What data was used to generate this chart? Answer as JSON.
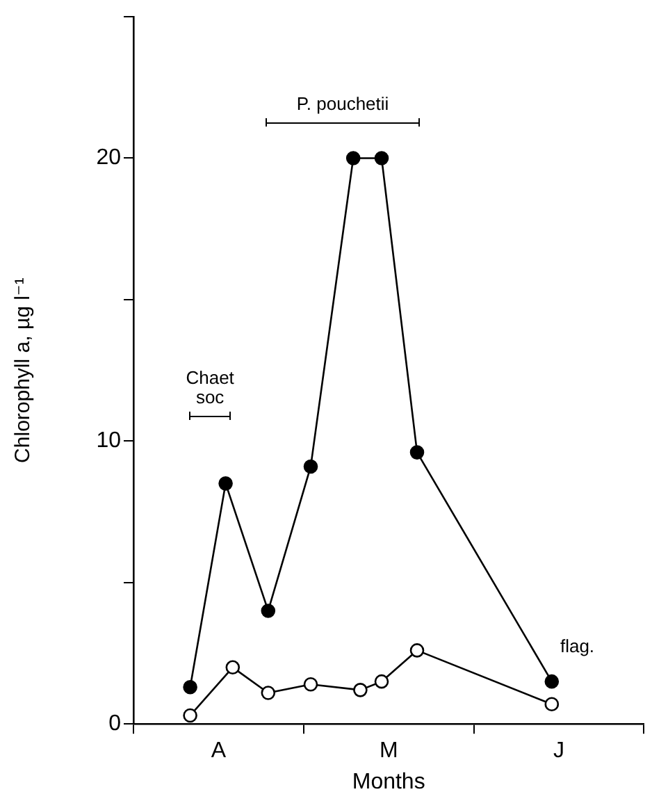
{
  "chart_data": {
    "type": "line",
    "xlabel": "Months",
    "ylabel": "Chlorophyll a, µg l⁻¹",
    "categories": [
      null,
      null,
      null,
      null,
      null,
      null,
      null,
      null,
      null,
      null,
      null,
      null,
      "A",
      null,
      null,
      null,
      null,
      null,
      null,
      null,
      null,
      null,
      null,
      null,
      null,
      null,
      null,
      null,
      null,
      null,
      null,
      null,
      null,
      null,
      null,
      null,
      "M",
      null,
      null,
      null,
      null,
      null,
      null,
      null,
      null,
      null,
      null,
      null,
      null,
      null,
      null,
      null,
      null,
      null,
      null,
      null,
      null,
      null,
      null,
      null,
      "J",
      null,
      null,
      null,
      null,
      null,
      null,
      null,
      null,
      null,
      null,
      null,
      null
    ],
    "ylim": [
      0,
      25
    ],
    "yticks": [
      0,
      {
        "value": 5,
        "label": null
      },
      10,
      {
        "value": 15,
        "label": null
      },
      20,
      {
        "value": 25,
        "label": null
      }
    ],
    "series": [
      {
        "color": "#000000",
        "values": [
          null,
          null,
          null,
          null,
          null,
          null,
          null,
          null,
          1.3,
          null,
          null,
          null,
          null,
          8.5,
          null,
          null,
          null,
          null,
          null,
          4.0,
          null,
          null,
          null,
          null,
          null,
          9.1,
          null,
          null,
          null,
          null,
          null,
          20,
          null,
          null,
          null,
          20,
          null,
          null,
          null,
          null,
          9.6,
          null,
          null,
          null,
          null,
          null,
          null,
          null,
          null,
          null,
          null,
          null,
          null,
          null,
          null,
          null,
          null,
          null,
          null,
          1.5,
          null,
          null,
          null,
          null,
          null,
          null,
          null,
          null,
          null,
          null,
          null,
          null,
          null
        ]
      },
      {
        "color": "#ffffff",
        "values": [
          null,
          null,
          null,
          null,
          null,
          null,
          null,
          null,
          0.3,
          null,
          null,
          null,
          null,
          null,
          2.0,
          null,
          null,
          null,
          null,
          1.1,
          null,
          null,
          null,
          null,
          null,
          1.4,
          null,
          null,
          null,
          null,
          null,
          null,
          1.2,
          null,
          null,
          1.5,
          null,
          null,
          null,
          null,
          2.6,
          null,
          null,
          null,
          null,
          null,
          null,
          null,
          null,
          null,
          null,
          null,
          null,
          null,
          null,
          null,
          null,
          null,
          null,
          0.7,
          null,
          null,
          null,
          null,
          null,
          null,
          null,
          null,
          null,
          null,
          null,
          null,
          null
        ]
      }
    ],
    "annotations": [
      "Chaet soc",
      "P. pouchetii",
      "flag."
    ],
    "marker": "circle",
    "line_style": "solid",
    "grid": false,
    "legend": false
  }
}
